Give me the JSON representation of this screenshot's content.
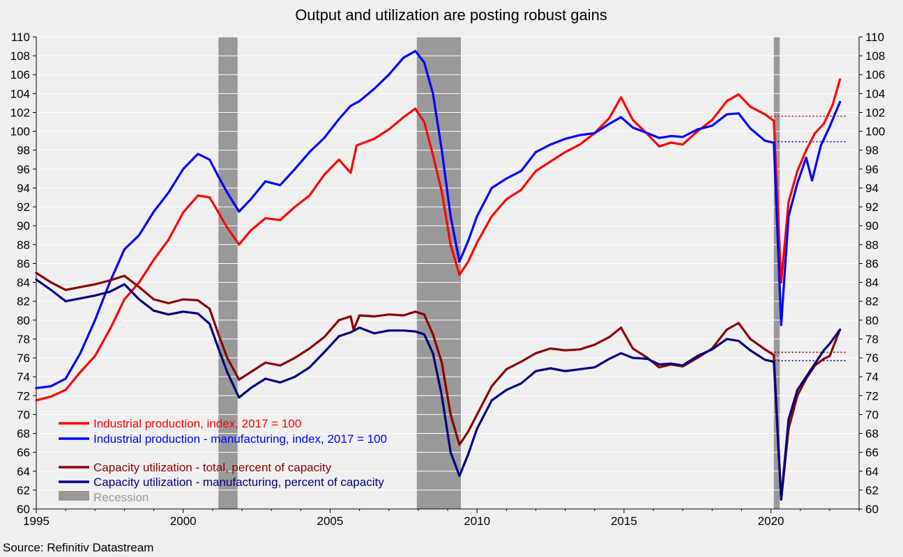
{
  "chart_data": {
    "type": "line",
    "title": "Output and utilization are posting robust gains",
    "source": "Source: Refinitiv Datastream",
    "xlabel": "",
    "ylabel": "",
    "xlim": [
      1995,
      2023
    ],
    "ylim": [
      60,
      110
    ],
    "x_ticks": [
      1995,
      2000,
      2005,
      2010,
      2015,
      2020
    ],
    "y_ticks": [
      60,
      62,
      64,
      66,
      68,
      70,
      72,
      74,
      76,
      78,
      80,
      82,
      84,
      86,
      88,
      90,
      92,
      94,
      96,
      98,
      100,
      102,
      104,
      106,
      108,
      110
    ],
    "grid": true,
    "legend_position": "lower-left",
    "recession_label": "Recession",
    "recessions": [
      [
        2001.2,
        2001.85
      ],
      [
        2007.95,
        2009.45
      ],
      [
        2020.1,
        2020.3
      ]
    ],
    "reference_lines": [
      {
        "series": "Industrial production, index, 2017 = 100",
        "value": 101.6,
        "from": 2020.0,
        "to": 2022.6,
        "color": "#e00000"
      },
      {
        "series": "Industrial production - manufacturing, index, 2017 = 100",
        "value": 98.9,
        "from": 2020.0,
        "to": 2022.6,
        "color": "#0000cc"
      },
      {
        "series": "Capacity utilization - total, percent of capacity",
        "value": 76.6,
        "from": 2020.0,
        "to": 2022.6,
        "color": "#800000"
      },
      {
        "series": "Capacity utilization - manufacturing, percent of capacity",
        "value": 75.7,
        "from": 2020.0,
        "to": 2022.6,
        "color": "#000080"
      }
    ],
    "series": [
      {
        "name": "Industrial production, index, 2017 = 100",
        "color": "#ff0000",
        "points": [
          [
            1995.0,
            71.5
          ],
          [
            1995.5,
            71.9
          ],
          [
            1996.0,
            72.6
          ],
          [
            1996.5,
            74.5
          ],
          [
            1997.0,
            76.2
          ],
          [
            1997.5,
            79.0
          ],
          [
            1998.0,
            82.2
          ],
          [
            1998.5,
            84.0
          ],
          [
            1999.0,
            86.4
          ],
          [
            1999.5,
            88.5
          ],
          [
            2000.0,
            91.4
          ],
          [
            2000.5,
            93.2
          ],
          [
            2000.9,
            93.0
          ],
          [
            2001.2,
            91.4
          ],
          [
            2001.5,
            89.8
          ],
          [
            2001.9,
            88.0
          ],
          [
            2002.3,
            89.5
          ],
          [
            2002.8,
            90.8
          ],
          [
            2003.3,
            90.6
          ],
          [
            2003.8,
            92.0
          ],
          [
            2004.3,
            93.2
          ],
          [
            2004.8,
            95.4
          ],
          [
            2005.3,
            97.0
          ],
          [
            2005.7,
            95.6
          ],
          [
            2005.9,
            98.5
          ],
          [
            2006.5,
            99.2
          ],
          [
            2007.0,
            100.2
          ],
          [
            2007.5,
            101.5
          ],
          [
            2007.9,
            102.4
          ],
          [
            2008.2,
            101.0
          ],
          [
            2008.5,
            97.5
          ],
          [
            2008.8,
            93.6
          ],
          [
            2009.1,
            88.0
          ],
          [
            2009.4,
            84.8
          ],
          [
            2009.7,
            86.2
          ],
          [
            2010.0,
            88.2
          ],
          [
            2010.5,
            91.0
          ],
          [
            2011.0,
            92.8
          ],
          [
            2011.5,
            93.8
          ],
          [
            2012.0,
            95.8
          ],
          [
            2012.5,
            96.8
          ],
          [
            2013.0,
            97.8
          ],
          [
            2013.5,
            98.6
          ],
          [
            2014.0,
            99.8
          ],
          [
            2014.5,
            101.4
          ],
          [
            2014.9,
            103.6
          ],
          [
            2015.3,
            101.2
          ],
          [
            2015.8,
            99.7
          ],
          [
            2016.2,
            98.4
          ],
          [
            2016.6,
            98.8
          ],
          [
            2017.0,
            98.6
          ],
          [
            2017.5,
            100.0
          ],
          [
            2018.0,
            101.2
          ],
          [
            2018.5,
            103.2
          ],
          [
            2018.9,
            103.9
          ],
          [
            2019.3,
            102.6
          ],
          [
            2019.8,
            101.8
          ],
          [
            2020.1,
            101.1
          ],
          [
            2020.35,
            84.0
          ],
          [
            2020.6,
            92.5
          ],
          [
            2020.9,
            95.8
          ],
          [
            2021.2,
            98.0
          ],
          [
            2021.5,
            99.8
          ],
          [
            2021.8,
            100.8
          ],
          [
            2022.1,
            102.8
          ],
          [
            2022.35,
            105.5
          ]
        ]
      },
      {
        "name": "Industrial production - manufacturing, index, 2017 = 100",
        "color": "#0000ff",
        "points": [
          [
            1995.0,
            72.8
          ],
          [
            1995.5,
            73.0
          ],
          [
            1996.0,
            73.8
          ],
          [
            1996.5,
            76.5
          ],
          [
            1997.0,
            80.0
          ],
          [
            1997.5,
            84.0
          ],
          [
            1998.0,
            87.5
          ],
          [
            1998.5,
            89.0
          ],
          [
            1999.0,
            91.5
          ],
          [
            1999.5,
            93.5
          ],
          [
            2000.0,
            96.0
          ],
          [
            2000.5,
            97.6
          ],
          [
            2000.9,
            97.0
          ],
          [
            2001.2,
            95.2
          ],
          [
            2001.5,
            93.5
          ],
          [
            2001.9,
            91.5
          ],
          [
            2002.3,
            92.8
          ],
          [
            2002.8,
            94.7
          ],
          [
            2003.3,
            94.3
          ],
          [
            2003.8,
            96.0
          ],
          [
            2004.3,
            97.8
          ],
          [
            2004.8,
            99.3
          ],
          [
            2005.3,
            101.3
          ],
          [
            2005.7,
            102.7
          ],
          [
            2006.0,
            103.2
          ],
          [
            2006.5,
            104.5
          ],
          [
            2007.0,
            106.0
          ],
          [
            2007.5,
            107.8
          ],
          [
            2007.9,
            108.5
          ],
          [
            2008.2,
            107.3
          ],
          [
            2008.5,
            104.0
          ],
          [
            2008.8,
            98.0
          ],
          [
            2009.1,
            91.0
          ],
          [
            2009.4,
            86.2
          ],
          [
            2009.7,
            88.4
          ],
          [
            2010.0,
            91.0
          ],
          [
            2010.5,
            94.0
          ],
          [
            2011.0,
            95.0
          ],
          [
            2011.5,
            95.8
          ],
          [
            2012.0,
            97.8
          ],
          [
            2012.5,
            98.6
          ],
          [
            2013.0,
            99.2
          ],
          [
            2013.5,
            99.6
          ],
          [
            2014.0,
            99.8
          ],
          [
            2014.5,
            100.8
          ],
          [
            2014.9,
            101.5
          ],
          [
            2015.3,
            100.4
          ],
          [
            2015.8,
            99.8
          ],
          [
            2016.2,
            99.3
          ],
          [
            2016.6,
            99.5
          ],
          [
            2017.0,
            99.4
          ],
          [
            2017.5,
            100.2
          ],
          [
            2018.0,
            100.6
          ],
          [
            2018.5,
            101.8
          ],
          [
            2018.9,
            101.9
          ],
          [
            2019.3,
            100.3
          ],
          [
            2019.8,
            99.0
          ],
          [
            2020.1,
            98.8
          ],
          [
            2020.35,
            79.5
          ],
          [
            2020.6,
            91.0
          ],
          [
            2020.9,
            94.5
          ],
          [
            2021.2,
            97.2
          ],
          [
            2021.4,
            94.8
          ],
          [
            2021.7,
            98.5
          ],
          [
            2022.0,
            100.5
          ],
          [
            2022.35,
            103.1
          ]
        ]
      },
      {
        "name": "Capacity utilization - total, percent of capacity",
        "color": "#8b0000",
        "points": [
          [
            1995.0,
            85.0
          ],
          [
            1995.5,
            84.0
          ],
          [
            1996.0,
            83.2
          ],
          [
            1996.5,
            83.5
          ],
          [
            1997.0,
            83.8
          ],
          [
            1997.5,
            84.2
          ],
          [
            1998.0,
            84.7
          ],
          [
            1998.5,
            83.5
          ],
          [
            1999.0,
            82.2
          ],
          [
            1999.5,
            81.8
          ],
          [
            2000.0,
            82.2
          ],
          [
            2000.5,
            82.1
          ],
          [
            2000.9,
            81.2
          ],
          [
            2001.2,
            78.5
          ],
          [
            2001.5,
            76.0
          ],
          [
            2001.9,
            73.7
          ],
          [
            2002.3,
            74.5
          ],
          [
            2002.8,
            75.5
          ],
          [
            2003.3,
            75.2
          ],
          [
            2003.8,
            76.0
          ],
          [
            2004.3,
            77.0
          ],
          [
            2004.8,
            78.2
          ],
          [
            2005.3,
            80.0
          ],
          [
            2005.7,
            80.4
          ],
          [
            2005.8,
            79.0
          ],
          [
            2006.0,
            80.5
          ],
          [
            2006.5,
            80.4
          ],
          [
            2007.0,
            80.6
          ],
          [
            2007.5,
            80.5
          ],
          [
            2007.9,
            80.9
          ],
          [
            2008.2,
            80.6
          ],
          [
            2008.5,
            78.5
          ],
          [
            2008.8,
            75.5
          ],
          [
            2009.1,
            70.0
          ],
          [
            2009.4,
            66.8
          ],
          [
            2009.7,
            68.2
          ],
          [
            2010.0,
            70.0
          ],
          [
            2010.5,
            73.0
          ],
          [
            2011.0,
            74.8
          ],
          [
            2011.5,
            75.6
          ],
          [
            2012.0,
            76.5
          ],
          [
            2012.5,
            77.0
          ],
          [
            2013.0,
            76.8
          ],
          [
            2013.5,
            76.9
          ],
          [
            2014.0,
            77.4
          ],
          [
            2014.5,
            78.2
          ],
          [
            2014.9,
            79.2
          ],
          [
            2015.3,
            77.0
          ],
          [
            2015.8,
            76.0
          ],
          [
            2016.2,
            75.0
          ],
          [
            2016.6,
            75.3
          ],
          [
            2017.0,
            75.1
          ],
          [
            2017.5,
            76.0
          ],
          [
            2018.0,
            77.0
          ],
          [
            2018.5,
            79.0
          ],
          [
            2018.9,
            79.7
          ],
          [
            2019.3,
            78.0
          ],
          [
            2019.8,
            76.9
          ],
          [
            2020.1,
            76.3
          ],
          [
            2020.35,
            61.0
          ],
          [
            2020.6,
            68.5
          ],
          [
            2020.9,
            72.0
          ],
          [
            2021.2,
            73.8
          ],
          [
            2021.5,
            75.2
          ],
          [
            2021.8,
            75.9
          ],
          [
            2022.0,
            76.2
          ],
          [
            2022.35,
            79.0
          ]
        ]
      },
      {
        "name": "Capacity utilization - manufacturing, percent of capacity",
        "color": "#000080",
        "points": [
          [
            1995.0,
            84.3
          ],
          [
            1995.5,
            83.2
          ],
          [
            1996.0,
            82.0
          ],
          [
            1996.5,
            82.3
          ],
          [
            1997.0,
            82.6
          ],
          [
            1997.5,
            83.0
          ],
          [
            1998.0,
            83.8
          ],
          [
            1998.5,
            82.2
          ],
          [
            1999.0,
            81.0
          ],
          [
            1999.5,
            80.6
          ],
          [
            2000.0,
            80.9
          ],
          [
            2000.5,
            80.7
          ],
          [
            2000.9,
            79.6
          ],
          [
            2001.2,
            77.0
          ],
          [
            2001.5,
            74.5
          ],
          [
            2001.9,
            71.8
          ],
          [
            2002.3,
            72.8
          ],
          [
            2002.8,
            73.8
          ],
          [
            2003.3,
            73.4
          ],
          [
            2003.8,
            74.0
          ],
          [
            2004.3,
            75.0
          ],
          [
            2004.8,
            76.6
          ],
          [
            2005.3,
            78.3
          ],
          [
            2005.7,
            78.7
          ],
          [
            2006.0,
            79.2
          ],
          [
            2006.5,
            78.6
          ],
          [
            2007.0,
            78.9
          ],
          [
            2007.5,
            78.9
          ],
          [
            2007.9,
            78.8
          ],
          [
            2008.2,
            78.5
          ],
          [
            2008.5,
            76.5
          ],
          [
            2008.8,
            72.0
          ],
          [
            2009.1,
            66.0
          ],
          [
            2009.4,
            63.5
          ],
          [
            2009.7,
            65.8
          ],
          [
            2010.0,
            68.5
          ],
          [
            2010.5,
            71.5
          ],
          [
            2011.0,
            72.6
          ],
          [
            2011.5,
            73.3
          ],
          [
            2012.0,
            74.6
          ],
          [
            2012.5,
            74.9
          ],
          [
            2013.0,
            74.6
          ],
          [
            2013.5,
            74.8
          ],
          [
            2014.0,
            75.0
          ],
          [
            2014.5,
            75.9
          ],
          [
            2014.9,
            76.5
          ],
          [
            2015.3,
            76.0
          ],
          [
            2015.8,
            75.9
          ],
          [
            2016.2,
            75.3
          ],
          [
            2016.6,
            75.4
          ],
          [
            2017.0,
            75.2
          ],
          [
            2017.5,
            76.2
          ],
          [
            2018.0,
            76.9
          ],
          [
            2018.5,
            78.0
          ],
          [
            2018.9,
            77.8
          ],
          [
            2019.3,
            76.8
          ],
          [
            2019.8,
            75.8
          ],
          [
            2020.1,
            75.6
          ],
          [
            2020.35,
            61.0
          ],
          [
            2020.6,
            69.5
          ],
          [
            2020.9,
            72.6
          ],
          [
            2021.2,
            74.0
          ],
          [
            2021.5,
            75.4
          ],
          [
            2021.8,
            76.8
          ],
          [
            2022.0,
            77.5
          ],
          [
            2022.35,
            79.0
          ]
        ]
      }
    ]
  }
}
